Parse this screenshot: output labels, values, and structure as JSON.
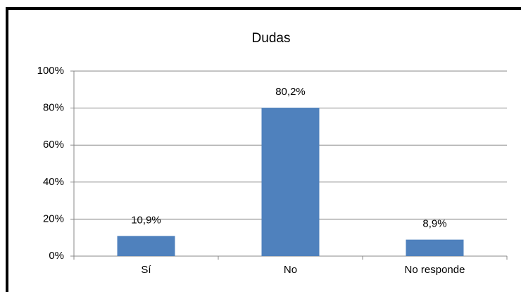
{
  "chart_data": {
    "type": "bar",
    "title": "Dudas",
    "categories": [
      "Sí",
      "No",
      "No responde"
    ],
    "values": [
      10.9,
      80.2,
      8.9
    ],
    "value_labels": [
      "10,9%",
      "80,2%",
      "8,9%"
    ],
    "color": "#4f81bd",
    "ylim": [
      0,
      100
    ],
    "yticks": [
      {
        "value": 0,
        "label": "0%"
      },
      {
        "value": 20,
        "label": "20%"
      },
      {
        "value": 40,
        "label": "40%"
      },
      {
        "value": 60,
        "label": "60%"
      },
      {
        "value": 80,
        "label": "80%"
      },
      {
        "value": 100,
        "label": "100%"
      }
    ],
    "grid": true
  }
}
